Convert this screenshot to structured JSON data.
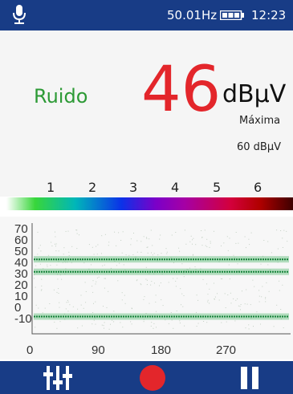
{
  "status": {
    "frequency": "50.01Hz",
    "time": "12:23",
    "icons": [
      "microphone-icon",
      "battery-icon"
    ]
  },
  "meter": {
    "label": "Ruido",
    "value": "46",
    "unit": "dBµV",
    "max_label": "Máxima",
    "max_value": "60 dBµV"
  },
  "scale": {
    "numbers": [
      "1",
      "2",
      "3",
      "4",
      "5",
      "6"
    ]
  },
  "chart_data": {
    "type": "line",
    "x_ticks": [
      "0",
      "90",
      "180",
      "270"
    ],
    "y_ticks": [
      "70",
      "60",
      "50",
      "40",
      "30",
      "20",
      "10",
      "0",
      "-10"
    ],
    "xlim": [
      0,
      360
    ],
    "ylim": [
      -10,
      70
    ],
    "series": [
      {
        "x": [
          0,
          360
        ],
        "values": [
          46,
          46
        ]
      },
      {
        "x": [
          0,
          360
        ],
        "values": [
          36,
          36
        ]
      },
      {
        "x": [
          0,
          360
        ],
        "values": [
          0,
          0
        ]
      }
    ]
  },
  "toolbar": {
    "icons": [
      "equalizer-icon",
      "record-icon",
      "pause-icon"
    ],
    "colors": {
      "bar": "#183c86",
      "record": "#e3262b"
    }
  }
}
